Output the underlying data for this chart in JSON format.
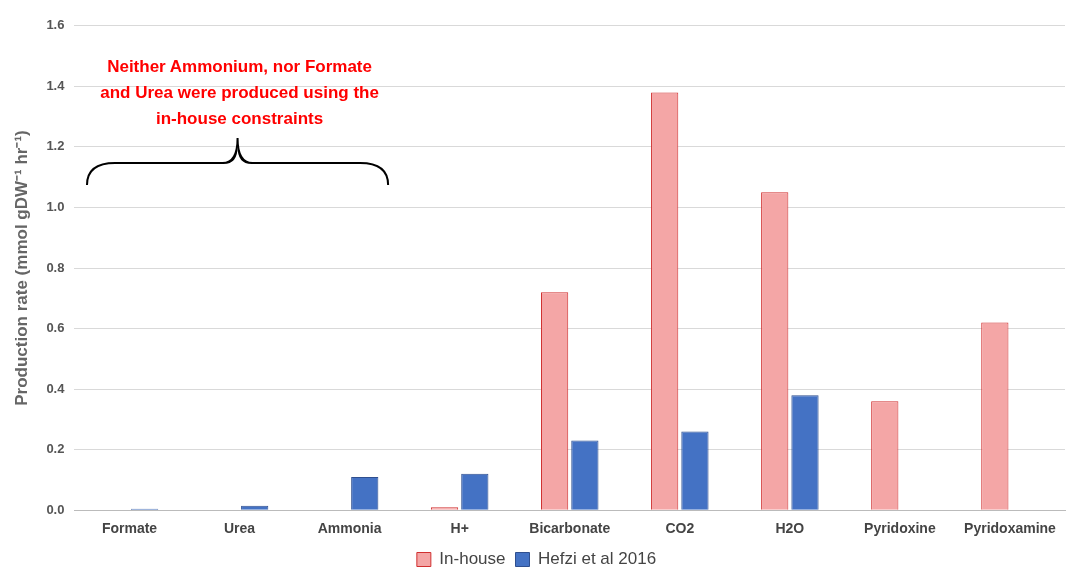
{
  "chart_data": {
    "type": "bar",
    "ylabel": "Production rate (mmol gDW⁻¹ hr⁻¹)",
    "categories": [
      "Formate",
      "Urea",
      "Ammonia",
      "H+",
      "Bicarbonate",
      "CO2",
      "H2O",
      "Pyridoxine",
      "Pyridoxamine"
    ],
    "series": [
      {
        "name": "In-house",
        "color": "#f4a6a6",
        "values": [
          0,
          0,
          0,
          0.01,
          0.72,
          1.38,
          1.05,
          0.36,
          0.62
        ]
      },
      {
        "name": "Hefzi et al 2016",
        "color": "#4472c4",
        "values": [
          0.005,
          0.015,
          0.11,
          0.12,
          0.23,
          0.26,
          0.38,
          0,
          0
        ]
      }
    ],
    "ylim": [
      0,
      1.6
    ],
    "yticks": [
      {
        "value": 0,
        "label": "0.0"
      },
      0.2,
      0.4,
      0.6,
      0.8,
      {
        "value": 1,
        "label": "1.0"
      },
      1.2,
      1.4,
      1.6
    ],
    "grid": "y",
    "legend": "bottom",
    "annotations": [
      "Neither Ammonium, nor Formate and Urea were produced using the in-house constraints"
    ]
  }
}
